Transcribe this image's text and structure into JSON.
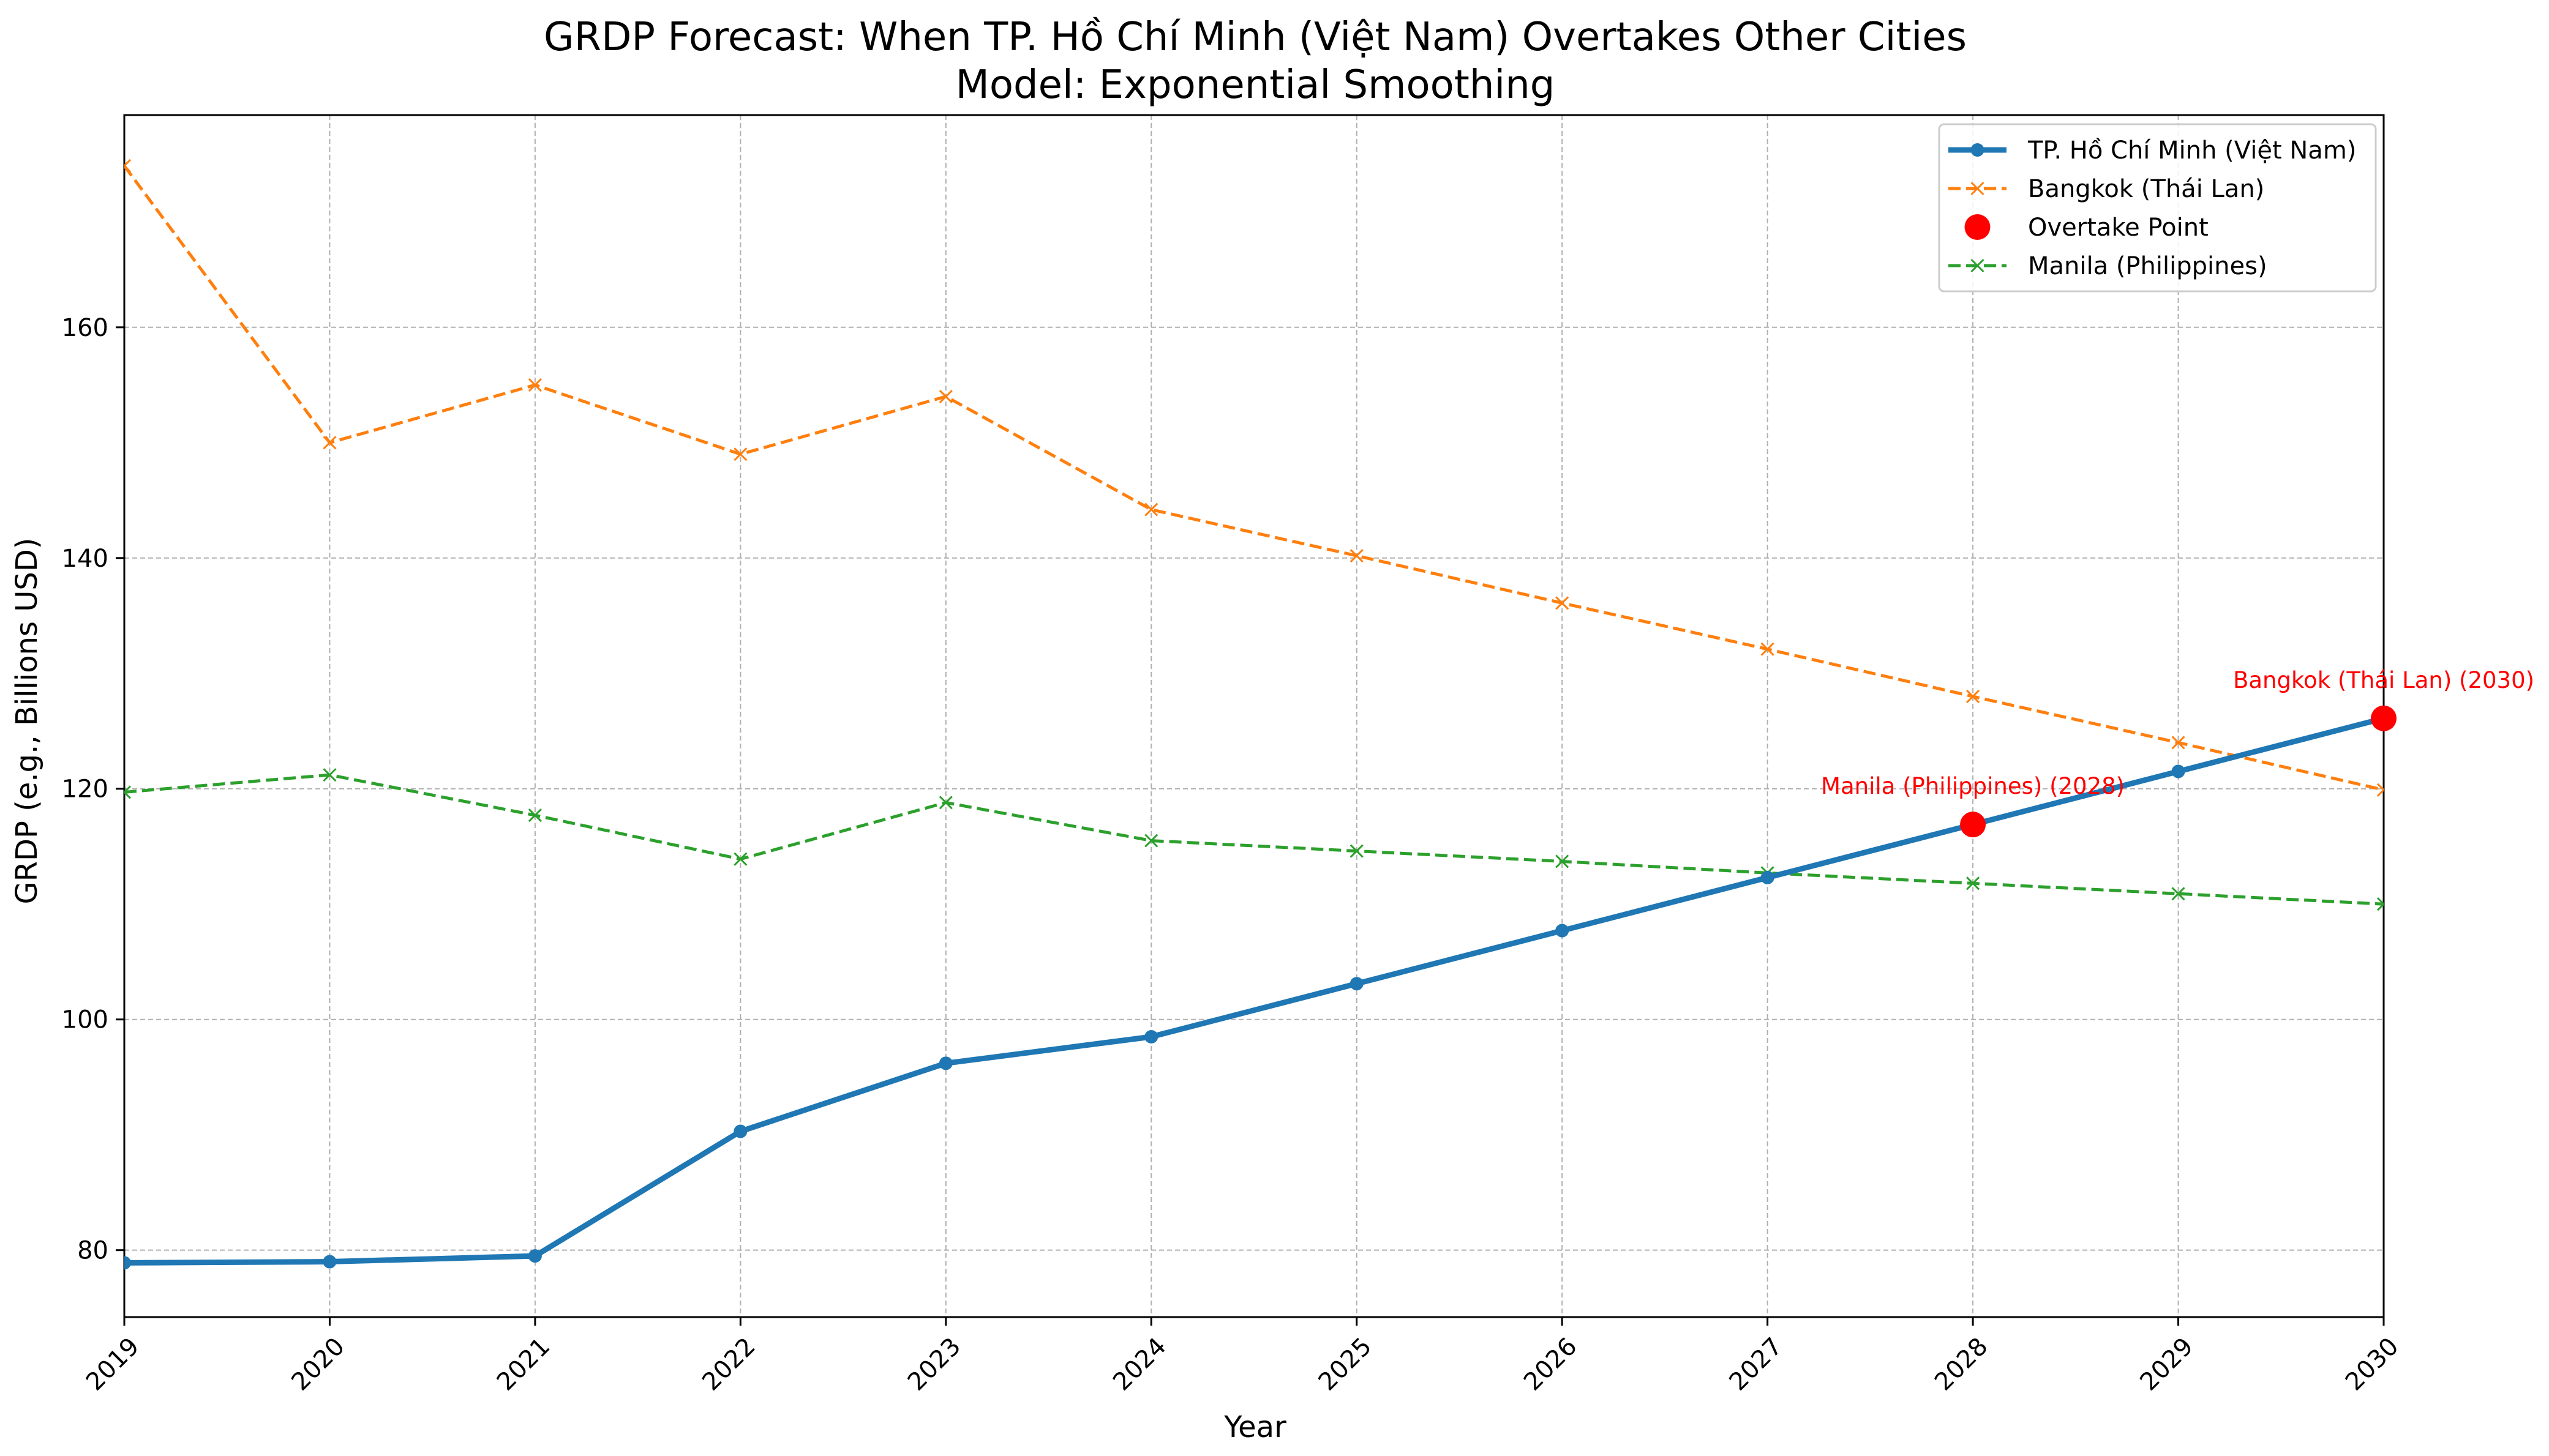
{
  "chart_data": {
    "type": "line",
    "title": "GRDP Forecast: When TP. Hồ Chí Minh (Việt Nam) Overtakes Other Cities",
    "subtitle": "Model: Exponential Smoothing",
    "xlabel": "Year",
    "ylabel": "GRDP (e.g., Billions USD)",
    "xlim": [
      2019,
      2030
    ],
    "ylim": [
      74.2,
      178.4
    ],
    "x": [
      2019,
      2020,
      2021,
      2022,
      2023,
      2024,
      2025,
      2026,
      2027,
      2028,
      2029,
      2030
    ],
    "x_tick_labels": [
      "2019",
      "2020",
      "2021",
      "2022",
      "2023",
      "2024",
      "2025",
      "2026",
      "2027",
      "2028",
      "2029",
      "2030"
    ],
    "y_ticks": [
      80,
      100,
      120,
      140,
      160
    ],
    "y_tick_labels": [
      "80",
      "100",
      "120",
      "140",
      "160"
    ],
    "grid": true,
    "legend_position": "top-right",
    "series": [
      {
        "name": "TP. Hồ Chí Minh (Việt Nam)",
        "color": "#1f77b4",
        "line_style": "solid",
        "marker": "circle",
        "values": [
          78.9,
          79.0,
          79.5,
          90.3,
          96.2,
          98.5,
          103.1,
          107.7,
          112.3,
          116.9,
          121.5,
          126.1
        ]
      },
      {
        "name": "Bangkok (Thái Lan)",
        "color": "#ff7f0e",
        "line_style": "dashed",
        "marker": "x",
        "values": [
          174.0,
          150.0,
          155.0,
          149.0,
          154.0,
          144.2,
          140.2,
          136.1,
          132.1,
          128.0,
          124.0,
          119.9
        ]
      },
      {
        "name": "Manila (Philippines)",
        "color": "#2ca02c",
        "line_style": "dashed",
        "marker": "x",
        "values": [
          119.7,
          121.2,
          117.7,
          113.9,
          118.8,
          115.5,
          114.6,
          113.7,
          112.7,
          111.8,
          110.9,
          110.0
        ]
      }
    ],
    "overtake_points": {
      "name": "Overtake Point",
      "color": "#ff0000",
      "points": [
        {
          "x": 2028,
          "y": 116.9,
          "label": "Manila (Philippines) (2028)"
        },
        {
          "x": 2030,
          "y": 126.1,
          "label": "Bangkok (Thái Lan) (2030)"
        }
      ]
    },
    "legend_order": [
      "TP. Hồ Chí Minh (Việt Nam)",
      "Bangkok (Thái Lan)",
      "Overtake Point",
      "Manila (Philippines)"
    ]
  }
}
